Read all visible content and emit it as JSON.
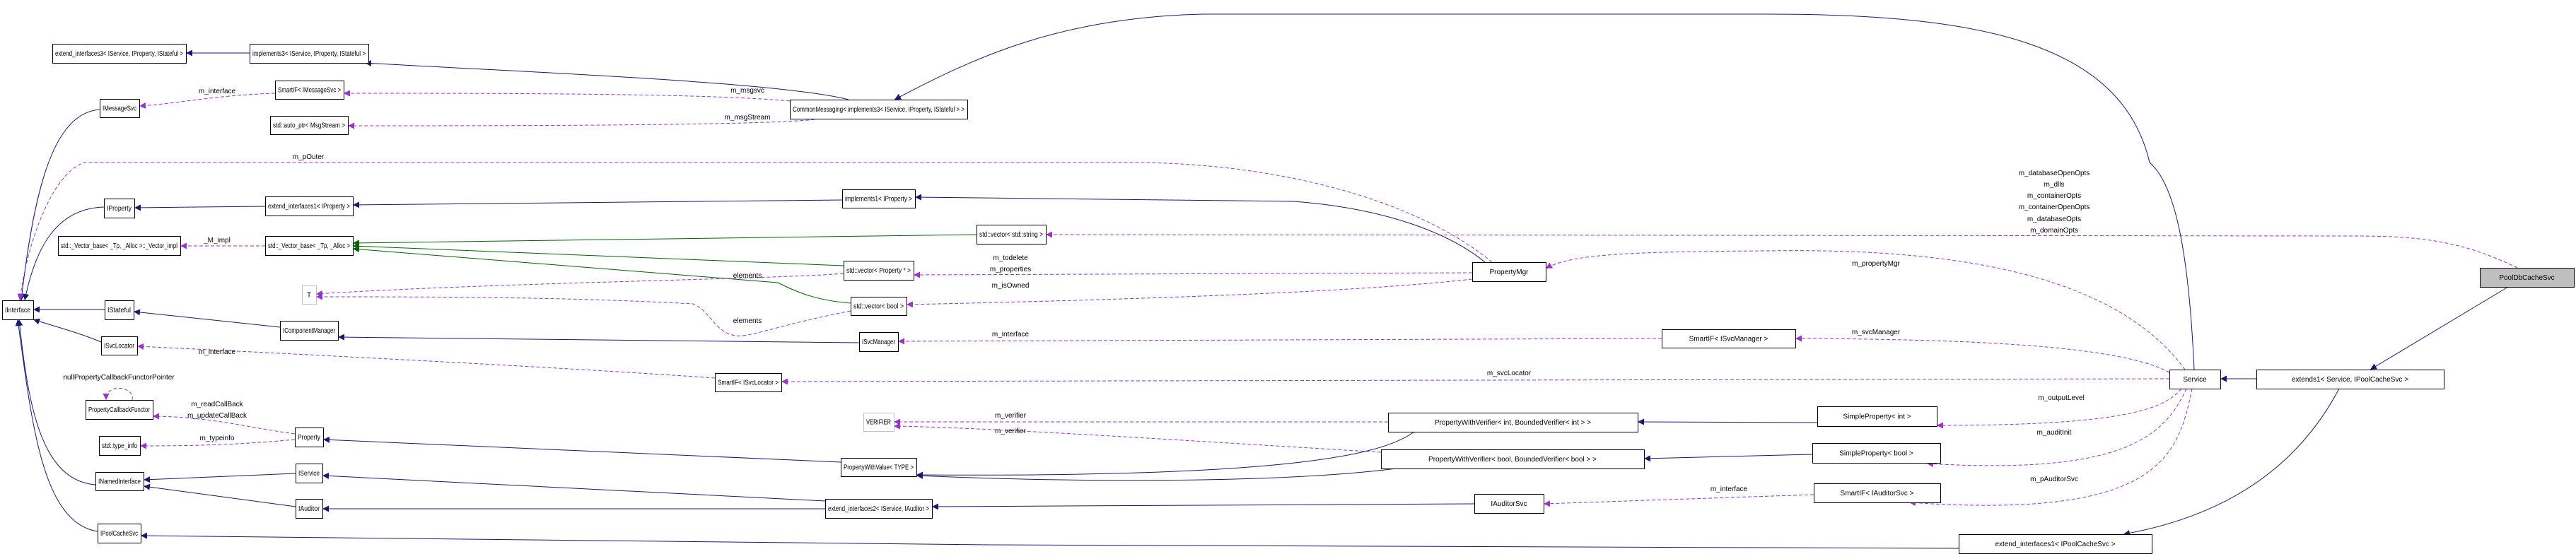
{
  "colors": {
    "inheritance": "#191970",
    "usage": "#9a32cd",
    "template": "#006400",
    "focus_fill": "#bfbfbf"
  },
  "nodes": {
    "ext3": "extend_interfaces3< IService, IProperty, IStateful >",
    "impl3": "implements3< IService, IProperty, IStateful >",
    "smartMsg": "SmartIF< IMessageSvc >",
    "imsg": "IMessageSvc",
    "autoptr": "std::auto_ptr< MsgStream >",
    "iprop": "IProperty",
    "ext1prop": "extend_interfaces1< IProperty >",
    "vimpl": "std::_Vector_base< _Tp, _Alloc >::_Vector_impl",
    "vbase": "std::_Vector_base< _Tp, _Alloc >",
    "iinterface": "IInterface",
    "istateful": "IStateful",
    "icomp": "IComponentManager",
    "isvcloc": "ISvcLocator",
    "t": "T",
    "pcf": "PropertyCallbackFunctor",
    "typeinfo": "std::type_info",
    "property": "Property",
    "iservice": "IService",
    "inamed": "INamedInterface",
    "iauditor": "IAuditor",
    "ipool": "IPoolCacheSvc",
    "commsg": "CommonMessaging< implements3< IService, IProperty, IStateful > >",
    "impl1": "implements1< IProperty >",
    "vstring": "std::vector< std::string >",
    "vprop": "std::vector< Property * >",
    "vbool": "std::vector< bool >",
    "isvcman": "ISvcManager",
    "smartsvcloc": "SmartIF< ISvcLocator >",
    "verifier": "VERIFIER",
    "pwvalue": "PropertyWithValue< TYPE >",
    "ext2": "extend_interfaces2< IService, IAuditor >",
    "propmgr": "PropertyMgr",
    "pwvint": "PropertyWithVerifier< int, BoundedVerifier< int > >",
    "pwvbool": "PropertyWithVerifier< bool, BoundedVerifier< bool > >",
    "smartsvcman": "SmartIF< ISvcManager >",
    "service": "Service",
    "extends1": "extends1< Service, IPoolCacheSvc >",
    "spint": "SimpleProperty< int >",
    "spbool": "SimpleProperty< bool >",
    "smartaud": "SmartIF< IAuditorSvc >",
    "iaudsvc": "IAuditorSvc",
    "ext1pool": "extend_interfaces1< IPoolCacheSvc >",
    "pooldb": "PoolDbCacheSvc"
  },
  "edge_labels": {
    "m_interface_msg": "m_interface",
    "m_msgsvc": "m_msgsvc",
    "m_msgStream": "m_msgStream",
    "m_pOuter": "m_pOuter",
    "m_impl": "_M_impl",
    "pooldb_opts": [
      "m_databaseOpenOpts",
      "m_dlls",
      "m_containerOpts",
      "m_containerOpenOpts",
      "m_databaseOpts",
      "m_domainOpts"
    ],
    "m_todelete": "m_todelete",
    "m_properties": "m_properties",
    "m_isOwned": "m_isOwned",
    "elements1": "elements",
    "elements2": "elements",
    "m_propertyMgr": "m_propertyMgr",
    "m_interface_svcman": "m_interface",
    "m_svcManager": "m_svcManager",
    "m_interface_svcloc": "m_interface",
    "m_svcLocator": "m_svcLocator",
    "null_pcf": "nullPropertyCallbackFunctorPointer",
    "m_readCallBack": "m_readCallBack",
    "m_updateCallBack": "m_updateCallBack",
    "m_typeinfo": "m_typeinfo",
    "m_verifier1": "m_verifier",
    "m_verifier2": "m_verifier",
    "m_outputLevel": "m_outputLevel",
    "m_auditInit": "m_auditInit",
    "m_pAuditorSvc": "m_pAuditorSvc",
    "m_interface_aud": "m_interface"
  }
}
